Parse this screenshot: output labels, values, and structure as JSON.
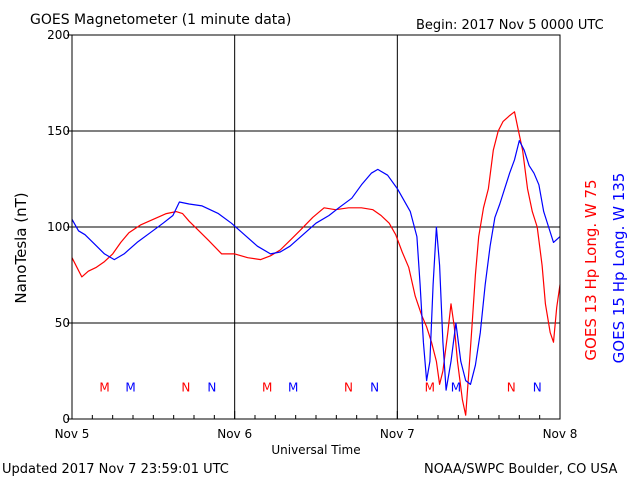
{
  "header": {
    "title": "GOES Magnetometer (1 minute data)",
    "begin": "Begin:  2017 Nov 5 0000 UTC"
  },
  "footer": {
    "updated": "Updated 2017 Nov  7 23:59:01 UTC",
    "credit": "NOAA/SWPC Boulder, CO USA"
  },
  "chart_data": {
    "type": "line",
    "title": "GOES Magnetometer (1 minute data)",
    "xlabel": "Universal Time",
    "ylabel": "NanoTesla (nT)",
    "x_unit": "days since 2017 Nov 5 0000 UTC",
    "xlim": [
      0,
      3
    ],
    "ylim": [
      0,
      200
    ],
    "x_ticks": [
      {
        "value": 0,
        "label": "Nov 5"
      },
      {
        "value": 1,
        "label": "Nov 6"
      },
      {
        "value": 2,
        "label": "Nov 7"
      },
      {
        "value": 3,
        "label": "Nov 8"
      }
    ],
    "y_ticks": [
      0,
      50,
      100,
      150,
      200
    ],
    "grid": true,
    "series": [
      {
        "name": "GOES 13 Hp  Long. W 75",
        "color": "#ff0000",
        "points": [
          [
            0.0,
            84
          ],
          [
            0.03,
            79
          ],
          [
            0.06,
            74
          ],
          [
            0.1,
            77
          ],
          [
            0.15,
            79
          ],
          [
            0.2,
            82
          ],
          [
            0.25,
            86
          ],
          [
            0.3,
            92
          ],
          [
            0.35,
            97
          ],
          [
            0.42,
            101
          ],
          [
            0.5,
            104
          ],
          [
            0.58,
            107
          ],
          [
            0.64,
            108
          ],
          [
            0.68,
            107
          ],
          [
            0.72,
            103
          ],
          [
            0.78,
            98
          ],
          [
            0.84,
            93
          ],
          [
            0.92,
            86
          ],
          [
            1.0,
            86
          ],
          [
            1.08,
            84
          ],
          [
            1.16,
            83
          ],
          [
            1.22,
            85
          ],
          [
            1.28,
            88
          ],
          [
            1.34,
            93
          ],
          [
            1.4,
            98
          ],
          [
            1.48,
            105
          ],
          [
            1.55,
            110
          ],
          [
            1.62,
            109
          ],
          [
            1.7,
            110
          ],
          [
            1.78,
            110
          ],
          [
            1.85,
            109
          ],
          [
            1.9,
            106
          ],
          [
            1.95,
            102
          ],
          [
            1.99,
            96
          ],
          [
            2.03,
            87
          ],
          [
            2.07,
            79
          ],
          [
            2.11,
            64
          ],
          [
            2.15,
            54
          ],
          [
            2.18,
            48
          ],
          [
            2.21,
            40
          ],
          [
            2.24,
            30
          ],
          [
            2.26,
            18
          ],
          [
            2.28,
            25
          ],
          [
            2.31,
            45
          ],
          [
            2.33,
            60
          ],
          [
            2.35,
            48
          ],
          [
            2.37,
            30
          ],
          [
            2.4,
            10
          ],
          [
            2.42,
            2
          ],
          [
            2.44,
            25
          ],
          [
            2.46,
            50
          ],
          [
            2.48,
            75
          ],
          [
            2.5,
            95
          ],
          [
            2.53,
            110
          ],
          [
            2.56,
            120
          ],
          [
            2.59,
            140
          ],
          [
            2.62,
            150
          ],
          [
            2.65,
            155
          ],
          [
            2.69,
            158
          ],
          [
            2.72,
            160
          ],
          [
            2.74,
            152
          ],
          [
            2.77,
            140
          ],
          [
            2.8,
            120
          ],
          [
            2.83,
            108
          ],
          [
            2.86,
            100
          ],
          [
            2.89,
            80
          ],
          [
            2.91,
            60
          ],
          [
            2.94,
            45
          ],
          [
            2.96,
            40
          ],
          [
            2.98,
            58
          ],
          [
            3.0,
            70
          ]
        ]
      },
      {
        "name": "GOES 15 Hp  Long. W 135",
        "color": "#0000ff",
        "points": [
          [
            0.0,
            104
          ],
          [
            0.04,
            98
          ],
          [
            0.08,
            96
          ],
          [
            0.14,
            91
          ],
          [
            0.2,
            86
          ],
          [
            0.26,
            83
          ],
          [
            0.32,
            86
          ],
          [
            0.4,
            92
          ],
          [
            0.48,
            97
          ],
          [
            0.56,
            102
          ],
          [
            0.62,
            106
          ],
          [
            0.66,
            113
          ],
          [
            0.72,
            112
          ],
          [
            0.8,
            111
          ],
          [
            0.9,
            107
          ],
          [
            0.98,
            102
          ],
          [
            1.06,
            96
          ],
          [
            1.14,
            90
          ],
          [
            1.22,
            86
          ],
          [
            1.28,
            87
          ],
          [
            1.34,
            90
          ],
          [
            1.42,
            96
          ],
          [
            1.5,
            102
          ],
          [
            1.58,
            106
          ],
          [
            1.64,
            110
          ],
          [
            1.72,
            115
          ],
          [
            1.78,
            122
          ],
          [
            1.84,
            128
          ],
          [
            1.88,
            130
          ],
          [
            1.94,
            127
          ],
          [
            2.0,
            120
          ],
          [
            2.04,
            114
          ],
          [
            2.08,
            108
          ],
          [
            2.12,
            95
          ],
          [
            2.14,
            70
          ],
          [
            2.16,
            40
          ],
          [
            2.18,
            20
          ],
          [
            2.2,
            30
          ],
          [
            2.22,
            70
          ],
          [
            2.24,
            100
          ],
          [
            2.26,
            80
          ],
          [
            2.28,
            40
          ],
          [
            2.3,
            15
          ],
          [
            2.33,
            30
          ],
          [
            2.36,
            50
          ],
          [
            2.39,
            30
          ],
          [
            2.42,
            20
          ],
          [
            2.45,
            18
          ],
          [
            2.48,
            28
          ],
          [
            2.51,
            45
          ],
          [
            2.54,
            70
          ],
          [
            2.57,
            90
          ],
          [
            2.6,
            105
          ],
          [
            2.63,
            112
          ],
          [
            2.66,
            120
          ],
          [
            2.69,
            128
          ],
          [
            2.72,
            135
          ],
          [
            2.75,
            145
          ],
          [
            2.78,
            140
          ],
          [
            2.81,
            132
          ],
          [
            2.84,
            128
          ],
          [
            2.87,
            122
          ],
          [
            2.9,
            108
          ],
          [
            2.93,
            100
          ],
          [
            2.96,
            92
          ],
          [
            3.0,
            95
          ]
        ]
      }
    ],
    "markers": [
      {
        "label": "M",
        "x": 0.2,
        "color": "#ff0000"
      },
      {
        "label": "M",
        "x": 0.36,
        "color": "#0000ff"
      },
      {
        "label": "N",
        "x": 0.7,
        "color": "#ff0000"
      },
      {
        "label": "N",
        "x": 0.86,
        "color": "#0000ff"
      },
      {
        "label": "M",
        "x": 1.2,
        "color": "#ff0000"
      },
      {
        "label": "M",
        "x": 1.36,
        "color": "#0000ff"
      },
      {
        "label": "N",
        "x": 1.7,
        "color": "#ff0000"
      },
      {
        "label": "N",
        "x": 1.86,
        "color": "#0000ff"
      },
      {
        "label": "M",
        "x": 2.2,
        "color": "#ff0000"
      },
      {
        "label": "M",
        "x": 2.36,
        "color": "#0000ff"
      },
      {
        "label": "N",
        "x": 2.7,
        "color": "#ff0000"
      },
      {
        "label": "N",
        "x": 2.86,
        "color": "#0000ff"
      }
    ],
    "marker_y": 17
  }
}
